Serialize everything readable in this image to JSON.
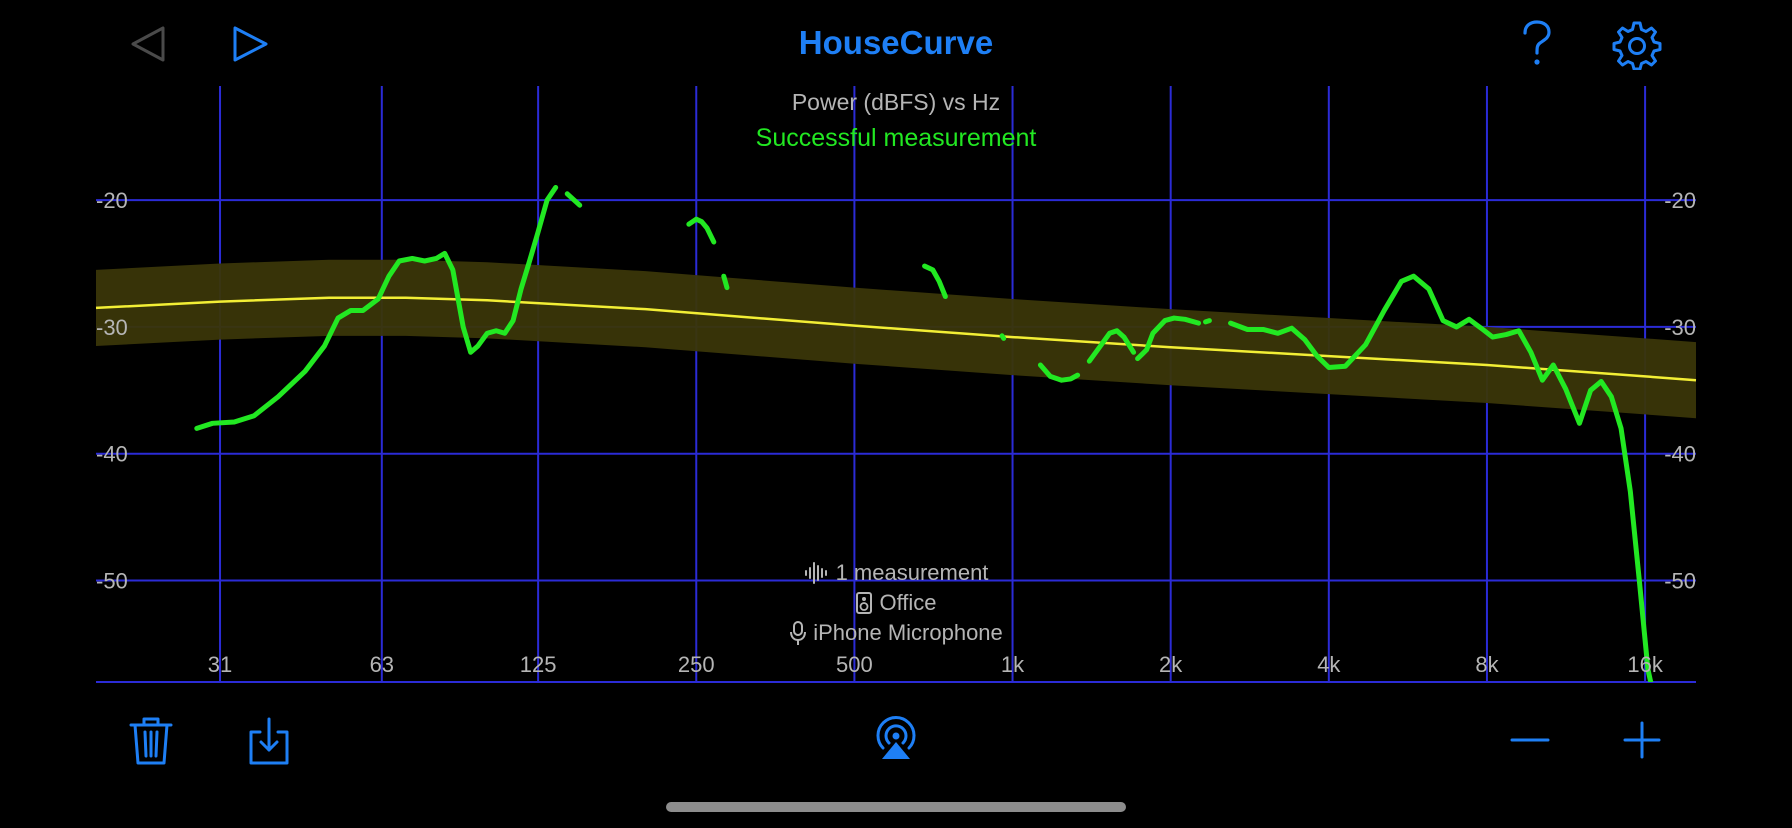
{
  "app": {
    "title": "HouseCurve",
    "accent_color": "#1e7ff5"
  },
  "toolbar": {
    "back_icon": "triangle-left-icon",
    "play_icon": "play-icon",
    "help_icon": "question-mark-icon",
    "settings_icon": "gear-icon"
  },
  "bottom_toolbar": {
    "delete_icon": "trash-icon",
    "export_icon": "download-tray-icon",
    "airplay_icon": "airplay-icon",
    "zoom_out_icon": "minus-icon",
    "zoom_in_icon": "plus-icon"
  },
  "measurement_info": {
    "count_icon": "waveform-icon",
    "count_label": "1 measurement",
    "room_icon": "speaker-icon",
    "room_label": "Office",
    "mic_icon": "microphone-icon",
    "mic_label": "iPhone Microphone"
  },
  "chart_data": {
    "type": "line",
    "title": "Power (dBFS) vs Hz",
    "subtitle": "Successful measurement",
    "status_color": "#22e822",
    "x_scale": "log",
    "x_ticks": [
      31,
      63,
      125,
      250,
      500,
      1000,
      2000,
      4000,
      8000,
      16000
    ],
    "x_tick_labels": [
      "31",
      "63",
      "125",
      "250",
      "500",
      "1k",
      "2k",
      "4k",
      "8k",
      "16k"
    ],
    "y_ticks": [
      -20,
      -30,
      -40,
      -50
    ],
    "y_tick_labels": [
      "-20",
      "-30",
      "-40",
      "-50"
    ],
    "xlim": [
      18,
      20000
    ],
    "ylim": [
      -58,
      -11
    ],
    "grid": true,
    "grid_color": "#2b2bd6",
    "target_curve": {
      "color": "#f2ee35",
      "band_color": "#3a3608",
      "band_halfwidth_db": 3,
      "x": [
        18,
        31,
        50,
        70,
        100,
        200,
        500,
        1000,
        2000,
        4000,
        8000,
        16000,
        20000
      ],
      "y": [
        -28.5,
        -28.0,
        -27.7,
        -27.7,
        -27.9,
        -28.6,
        -29.9,
        -30.8,
        -31.6,
        -32.3,
        -33.0,
        -33.9,
        -34.2
      ]
    },
    "series": [
      {
        "color": "#22e822",
        "segments": [
          {
            "x": [
              28,
              30,
              33,
              36,
              40,
              45,
              49,
              52,
              55,
              58,
              62,
              65,
              68,
              72,
              76,
              80,
              83,
              86,
              90,
              93,
              96,
              100,
              104,
              108,
              112,
              116,
              120,
              125,
              130,
              135
            ],
            "y": [
              -38.0,
              -37.6,
              -37.5,
              -37.0,
              -35.5,
              -33.5,
              -31.5,
              -29.3,
              -28.7,
              -28.7,
              -27.8,
              -26.0,
              -24.8,
              -24.6,
              -24.8,
              -24.6,
              -24.2,
              -25.5,
              -30.0,
              -32.0,
              -31.5,
              -30.5,
              -30.3,
              -30.5,
              -29.5,
              -27.0,
              -25.0,
              -22.5,
              -20.0,
              -19.0
            ]
          },
          {
            "x": [
              142,
              150
            ],
            "y": [
              -19.5,
              -20.4
            ]
          },
          {
            "x": [
              242,
              250,
              256,
              262,
              270
            ],
            "y": [
              -21.9,
              -21.5,
              -21.7,
              -22.2,
              -23.3
            ]
          },
          {
            "x": [
              282,
              286
            ],
            "y": [
              -26.0,
              -26.9
            ]
          },
          {
            "x": [
              680,
              705,
              725,
              745
            ],
            "y": [
              -25.2,
              -25.5,
              -26.4,
              -27.6
            ]
          },
          {
            "x": [
              955,
              962
            ],
            "y": [
              -30.7,
              -30.9
            ]
          },
          {
            "x": [
              1130,
              1180,
              1240,
              1290,
              1330
            ],
            "y": [
              -33.0,
              -33.9,
              -34.2,
              -34.1,
              -33.8
            ]
          },
          {
            "x": [
              1400,
              1470,
              1530,
              1580,
              1630,
              1700
            ],
            "y": [
              -32.7,
              -31.5,
              -30.5,
              -30.3,
              -30.8,
              -32.0
            ]
          },
          {
            "x": [
              1730,
              1800,
              1850,
              1950,
              2030,
              2130,
              2260
            ],
            "y": [
              -32.5,
              -31.8,
              -30.5,
              -29.5,
              -29.3,
              -29.4,
              -29.7
            ]
          },
          {
            "x": [
              2330,
              2370
            ],
            "y": [
              -29.6,
              -29.5
            ]
          },
          {
            "x": [
              2600,
              2800,
              3000,
              3200,
              3400,
              3600,
              3800,
              4000,
              4300,
              4700,
              5100,
              5500,
              5800,
              6200,
              6600,
              7000,
              7400,
              7800,
              8200,
              8700,
              9200,
              9700,
              10200,
              10700,
              11300,
              12000,
              12600,
              13200,
              13800,
              14400,
              15000,
              15600,
              16200,
              16800,
              17300,
              17800,
              18300,
              18800,
              19300,
              19800
            ],
            "y": [
              -29.7,
              -30.2,
              -30.2,
              -30.5,
              -30.1,
              -31.0,
              -32.3,
              -33.2,
              -33.1,
              -31.4,
              -28.7,
              -26.4,
              -26.0,
              -27.0,
              -29.5,
              -30.0,
              -29.4,
              -30.1,
              -30.8,
              -30.6,
              -30.3,
              -32.0,
              -34.2,
              -33.0,
              -34.9,
              -37.6,
              -35.0,
              -34.3,
              -35.5,
              -38.0,
              -43.0,
              -50.0,
              -57.0,
              -60.0,
              -60.5,
              -60.6,
              -60.6,
              -60.5,
              -60.5,
              -60.4
            ]
          }
        ]
      }
    ]
  }
}
